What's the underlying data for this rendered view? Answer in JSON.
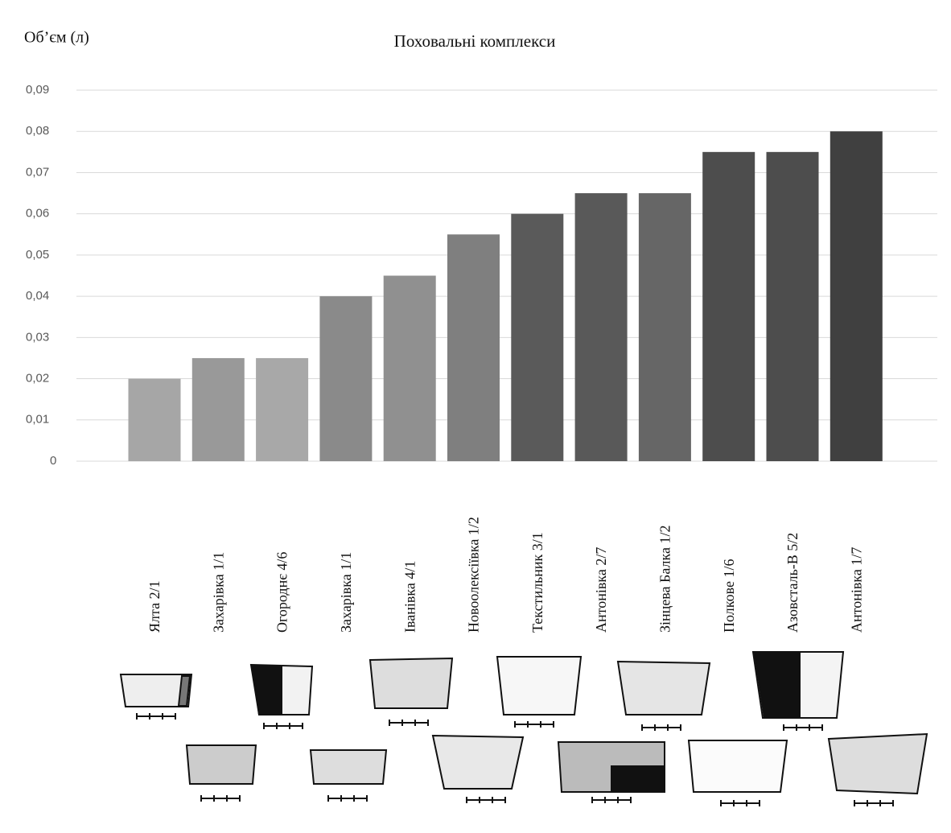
{
  "chart_data": {
    "type": "bar",
    "title": "Поховальні комплекси",
    "y_label": "Об’єм (л)",
    "categories": [
      "Ялта 2/1",
      "Захарівка 1/1",
      "Огороднє 4/6",
      "Захарівка 1/1",
      "Іванівка 4/1",
      "Новоолексіївка 1/2",
      "Текстильник 3/1",
      "Антонівка 2/7",
      "Зінцева Балка 1/2",
      "Полкове 1/6",
      "Азовсталь-В 5/2",
      "Антонівка 1/7"
    ],
    "values": [
      0.02,
      0.025,
      0.025,
      0.04,
      0.045,
      0.055,
      0.06,
      0.065,
      0.065,
      0.075,
      0.075,
      0.08
    ],
    "colors": [
      "#a6a6a6",
      "#999999",
      "#a8a8a8",
      "#8a8a8a",
      "#909090",
      "#7f7f7f",
      "#5a5a5a",
      "#595959",
      "#666666",
      "#4d4d4d",
      "#4d4d4d",
      "#404040"
    ],
    "ylim": [
      0,
      0.09
    ],
    "yticks": [
      0,
      {
        "value": 0.01,
        "label": "0,01"
      },
      {
        "value": 0.02,
        "label": "0,02"
      },
      {
        "value": 0.03,
        "label": "0,03"
      },
      {
        "value": 0.04,
        "label": "0,04"
      },
      {
        "value": 0.05,
        "label": "0,05"
      },
      {
        "value": 0.06,
        "label": "0,06"
      },
      {
        "value": 0.07,
        "label": "0,07"
      },
      {
        "value": 0.08,
        "label": "0,08"
      },
      {
        "value": 0.09,
        "label": "0,09"
      }
    ],
    "grid": true
  }
}
